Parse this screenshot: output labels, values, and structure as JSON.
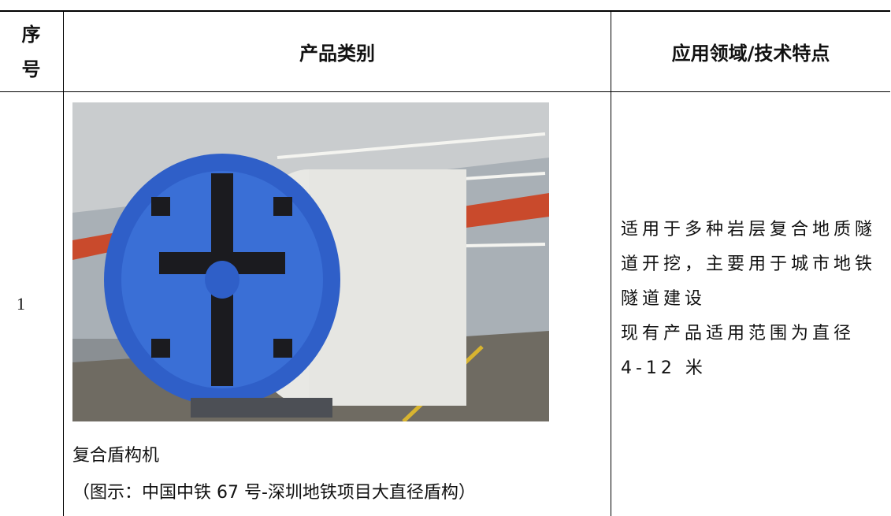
{
  "table": {
    "header": [
      "序号",
      "产品类别",
      "应用领域/技术特点"
    ],
    "rows": [
      {
        "index": "1",
        "product": {
          "name": "复合盾构机",
          "caption": "（图示：中国中铁 67 号-深圳地铁项目大直径盾构）"
        },
        "features": [
          "适用于多种岩层复合地质隧道开挖，主要用于城市地铁隧道建设",
          "现有产品适用范围为直径 4-12 米"
        ]
      }
    ]
  }
}
